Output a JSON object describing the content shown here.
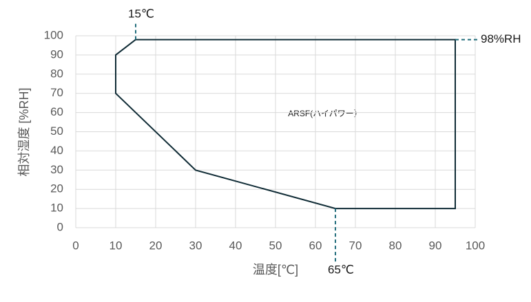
{
  "chart_data": {
    "type": "line",
    "xlabel": "温度[℃]",
    "ylabel": "相対湿度 [%RH]",
    "xlim": [
      0,
      100
    ],
    "xticks": [
      0,
      10,
      20,
      30,
      40,
      50,
      60,
      70,
      80,
      90,
      100
    ],
    "ylim": [
      0,
      100
    ],
    "yticks": [
      0,
      10,
      20,
      30,
      40,
      50,
      60,
      70,
      80,
      90,
      100
    ],
    "grid": true,
    "series": [
      {
        "name": "ARSF(ハイパワー）",
        "color": "#0f2b35",
        "x": [
          15,
          95,
          95,
          65,
          30,
          10,
          10,
          15
        ],
        "values": [
          98,
          98,
          10,
          10,
          30,
          70,
          90,
          98
        ]
      }
    ],
    "annotations": [
      {
        "text": "15℃",
        "x": 15,
        "y": 98,
        "side": "top"
      },
      {
        "text": "98%RH",
        "x": 95,
        "y": 98,
        "side": "right"
      },
      {
        "text": "65℃",
        "x": 65,
        "y": 10,
        "side": "bottom"
      }
    ],
    "annotation_color": "#1f6b7a"
  }
}
